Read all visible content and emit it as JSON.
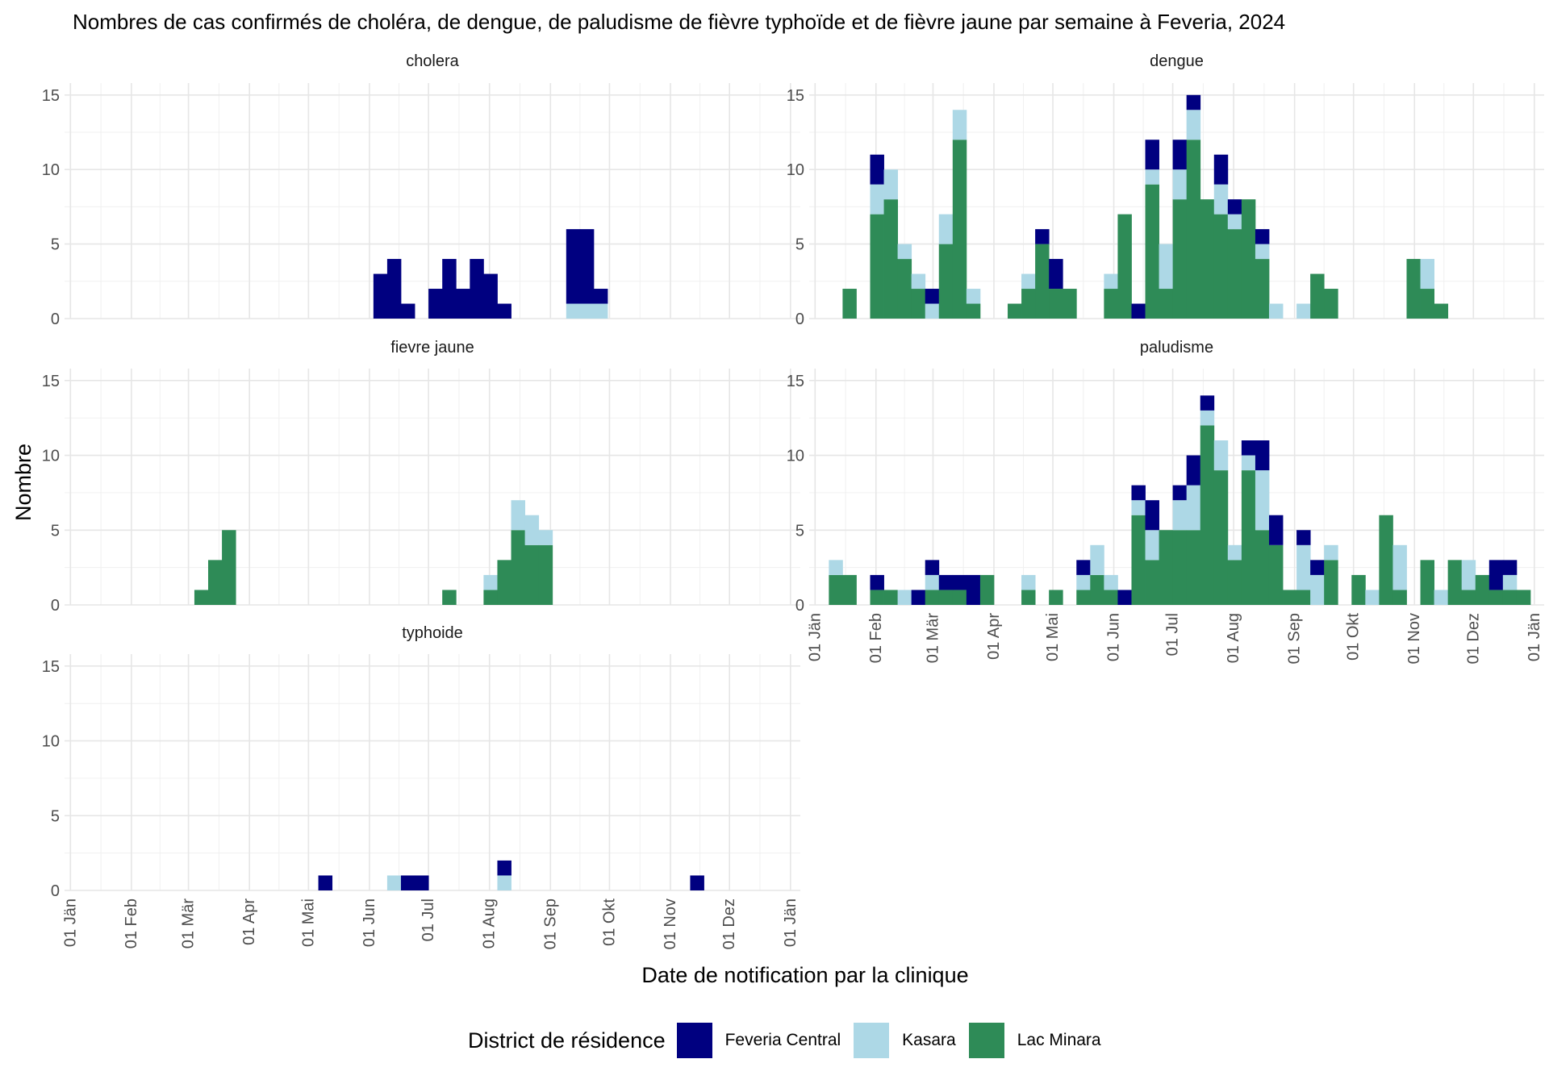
{
  "chart_data": {
    "type": "bar",
    "stacked": true,
    "title": "Nombres de cas confirmés de choléra, de dengue, de paludisme de fièvre typhoïde et de fièvre jaune par semaine à Feveria, 2024",
    "xlabel": "Date de notification par la clinique",
    "ylabel": "Nombre",
    "ylim": [
      0,
      15
    ],
    "yticks": [
      0,
      5,
      10,
      15
    ],
    "xlim": [
      "2023-12-29",
      "2025-01-06"
    ],
    "xtick_dates": [
      "2024-01-01",
      "2024-02-01",
      "2024-03-01",
      "2024-04-01",
      "2024-05-01",
      "2024-06-01",
      "2024-07-01",
      "2024-08-01",
      "2024-09-01",
      "2024-10-01",
      "2024-11-01",
      "2024-12-01",
      "2025-01-01"
    ],
    "xtick_labels": [
      "01 Jän",
      "01 Feb",
      "01 Mär",
      "01 Apr",
      "01 Mai",
      "01 Jun",
      "01 Jul",
      "01 Aug",
      "01 Sep",
      "01 Okt",
      "01 Nov",
      "01 Dez",
      "01 Jän"
    ],
    "grid": true,
    "legend": {
      "title": "District de résidence",
      "position": "bottom",
      "entries": [
        {
          "name": "Feveria Central",
          "color": "#000080"
        },
        {
          "name": "Kasara",
          "color": "#ADD8E6"
        },
        {
          "name": "Lac Minara",
          "color": "#2E8B57"
        }
      ]
    },
    "bin_width_days": 7,
    "series_order": [
      "Lac Minara",
      "Kasara",
      "Feveria Central"
    ],
    "panels": [
      {
        "name": "cholera",
        "weeks": [
          {
            "week": "2024-06-03",
            "Feveria Central": 3
          },
          {
            "week": "2024-06-10",
            "Feveria Central": 4
          },
          {
            "week": "2024-06-17",
            "Feveria Central": 1
          },
          {
            "week": "2024-07-01",
            "Feveria Central": 2
          },
          {
            "week": "2024-07-08",
            "Feveria Central": 4
          },
          {
            "week": "2024-07-15",
            "Feveria Central": 2
          },
          {
            "week": "2024-07-22",
            "Feveria Central": 4
          },
          {
            "week": "2024-07-29",
            "Feveria Central": 3
          },
          {
            "week": "2024-08-05",
            "Feveria Central": 1
          },
          {
            "week": "2024-09-09",
            "Kasara": 1,
            "Feveria Central": 5
          },
          {
            "week": "2024-09-16",
            "Kasara": 1,
            "Feveria Central": 5
          },
          {
            "week": "2024-09-23",
            "Kasara": 1,
            "Feveria Central": 1
          }
        ]
      },
      {
        "name": "dengue",
        "weeks": [
          {
            "week": "2024-01-15",
            "Lac Minara": 2
          },
          {
            "week": "2024-01-29",
            "Lac Minara": 7,
            "Kasara": 2,
            "Feveria Central": 2
          },
          {
            "week": "2024-02-05",
            "Lac Minara": 8,
            "Kasara": 2
          },
          {
            "week": "2024-02-12",
            "Lac Minara": 4,
            "Kasara": 1
          },
          {
            "week": "2024-02-19",
            "Lac Minara": 2,
            "Kasara": 1
          },
          {
            "week": "2024-02-26",
            "Kasara": 1,
            "Feveria Central": 1
          },
          {
            "week": "2024-03-04",
            "Lac Minara": 5,
            "Kasara": 2
          },
          {
            "week": "2024-03-11",
            "Lac Minara": 12,
            "Kasara": 2
          },
          {
            "week": "2024-03-18",
            "Lac Minara": 1,
            "Kasara": 1
          },
          {
            "week": "2024-04-08",
            "Lac Minara": 1
          },
          {
            "week": "2024-04-15",
            "Lac Minara": 2,
            "Kasara": 1
          },
          {
            "week": "2024-04-22",
            "Lac Minara": 5,
            "Feveria Central": 1
          },
          {
            "week": "2024-04-29",
            "Lac Minara": 2,
            "Feveria Central": 2
          },
          {
            "week": "2024-05-06",
            "Lac Minara": 2
          },
          {
            "week": "2024-05-27",
            "Lac Minara": 2,
            "Kasara": 1
          },
          {
            "week": "2024-06-03",
            "Lac Minara": 7
          },
          {
            "week": "2024-06-10",
            "Feveria Central": 1
          },
          {
            "week": "2024-06-17",
            "Lac Minara": 9,
            "Kasara": 1,
            "Feveria Central": 2
          },
          {
            "week": "2024-06-24",
            "Lac Minara": 2,
            "Kasara": 3
          },
          {
            "week": "2024-07-01",
            "Lac Minara": 8,
            "Kasara": 2,
            "Feveria Central": 2
          },
          {
            "week": "2024-07-08",
            "Lac Minara": 12,
            "Kasara": 2,
            "Feveria Central": 1
          },
          {
            "week": "2024-07-15",
            "Lac Minara": 8
          },
          {
            "week": "2024-07-22",
            "Lac Minara": 7,
            "Kasara": 2,
            "Feveria Central": 2
          },
          {
            "week": "2024-07-29",
            "Lac Minara": 6,
            "Kasara": 1,
            "Feveria Central": 1
          },
          {
            "week": "2024-08-05",
            "Lac Minara": 8
          },
          {
            "week": "2024-08-12",
            "Lac Minara": 4,
            "Kasara": 1,
            "Feveria Central": 1
          },
          {
            "week": "2024-08-19",
            "Kasara": 1
          },
          {
            "week": "2024-09-02",
            "Kasara": 1
          },
          {
            "week": "2024-09-09",
            "Lac Minara": 3
          },
          {
            "week": "2024-09-16",
            "Lac Minara": 2
          },
          {
            "week": "2024-10-28",
            "Lac Minara": 4
          },
          {
            "week": "2024-11-04",
            "Lac Minara": 2,
            "Kasara": 2
          },
          {
            "week": "2024-11-11",
            "Lac Minara": 1
          }
        ]
      },
      {
        "name": "fievre jaune",
        "weeks": [
          {
            "week": "2024-03-04",
            "Lac Minara": 1
          },
          {
            "week": "2024-03-11",
            "Lac Minara": 3
          },
          {
            "week": "2024-03-18",
            "Lac Minara": 5
          },
          {
            "week": "2024-07-08",
            "Lac Minara": 1
          },
          {
            "week": "2024-07-29",
            "Lac Minara": 1,
            "Kasara": 1
          },
          {
            "week": "2024-08-05",
            "Lac Minara": 3
          },
          {
            "week": "2024-08-12",
            "Lac Minara": 5,
            "Kasara": 2
          },
          {
            "week": "2024-08-19",
            "Lac Minara": 4,
            "Kasara": 2
          },
          {
            "week": "2024-08-26",
            "Lac Minara": 4,
            "Kasara": 1
          }
        ]
      },
      {
        "name": "paludisme",
        "weeks": [
          {
            "week": "2024-01-08",
            "Lac Minara": 2,
            "Kasara": 1
          },
          {
            "week": "2024-01-15",
            "Lac Minara": 2
          },
          {
            "week": "2024-01-29",
            "Lac Minara": 1,
            "Feveria Central": 1
          },
          {
            "week": "2024-02-05",
            "Lac Minara": 1
          },
          {
            "week": "2024-02-12",
            "Kasara": 1
          },
          {
            "week": "2024-02-19",
            "Feveria Central": 1
          },
          {
            "week": "2024-02-26",
            "Lac Minara": 1,
            "Kasara": 1,
            "Feveria Central": 1
          },
          {
            "week": "2024-03-04",
            "Lac Minara": 1,
            "Feveria Central": 1
          },
          {
            "week": "2024-03-11",
            "Lac Minara": 1,
            "Feveria Central": 1
          },
          {
            "week": "2024-03-18",
            "Feveria Central": 2
          },
          {
            "week": "2024-03-25",
            "Lac Minara": 2
          },
          {
            "week": "2024-04-15",
            "Lac Minara": 1,
            "Kasara": 1
          },
          {
            "week": "2024-04-29",
            "Lac Minara": 1
          },
          {
            "week": "2024-05-13",
            "Lac Minara": 1,
            "Kasara": 1,
            "Feveria Central": 1
          },
          {
            "week": "2024-05-20",
            "Lac Minara": 2,
            "Kasara": 2
          },
          {
            "week": "2024-05-27",
            "Lac Minara": 1,
            "Kasara": 1
          },
          {
            "week": "2024-06-03",
            "Feveria Central": 1
          },
          {
            "week": "2024-06-10",
            "Lac Minara": 6,
            "Kasara": 1,
            "Feveria Central": 1
          },
          {
            "week": "2024-06-17",
            "Lac Minara": 3,
            "Kasara": 2,
            "Feveria Central": 2
          },
          {
            "week": "2024-06-24",
            "Lac Minara": 5
          },
          {
            "week": "2024-07-01",
            "Lac Minara": 5,
            "Kasara": 2,
            "Feveria Central": 1
          },
          {
            "week": "2024-07-08",
            "Lac Minara": 5,
            "Kasara": 3,
            "Feveria Central": 2
          },
          {
            "week": "2024-07-15",
            "Lac Minara": 12,
            "Kasara": 1,
            "Feveria Central": 1
          },
          {
            "week": "2024-07-22",
            "Lac Minara": 9,
            "Kasara": 2
          },
          {
            "week": "2024-07-29",
            "Lac Minara": 3,
            "Kasara": 1
          },
          {
            "week": "2024-08-05",
            "Lac Minara": 9,
            "Kasara": 1,
            "Feveria Central": 1
          },
          {
            "week": "2024-08-12",
            "Lac Minara": 5,
            "Kasara": 4,
            "Feveria Central": 2
          },
          {
            "week": "2024-08-19",
            "Lac Minara": 4,
            "Feveria Central": 2
          },
          {
            "week": "2024-08-26",
            "Lac Minara": 1
          },
          {
            "week": "2024-09-02",
            "Lac Minara": 1,
            "Kasara": 3,
            "Feveria Central": 1
          },
          {
            "week": "2024-09-09",
            "Kasara": 2,
            "Feveria Central": 1
          },
          {
            "week": "2024-09-16",
            "Lac Minara": 3,
            "Kasara": 1
          },
          {
            "week": "2024-09-30",
            "Lac Minara": 2
          },
          {
            "week": "2024-10-07",
            "Kasara": 1
          },
          {
            "week": "2024-10-14",
            "Lac Minara": 6
          },
          {
            "week": "2024-10-21",
            "Lac Minara": 1,
            "Kasara": 3
          },
          {
            "week": "2024-11-04",
            "Lac Minara": 3
          },
          {
            "week": "2024-11-11",
            "Kasara": 1
          },
          {
            "week": "2024-11-18",
            "Lac Minara": 3
          },
          {
            "week": "2024-11-25",
            "Lac Minara": 1,
            "Kasara": 2
          },
          {
            "week": "2024-12-02",
            "Lac Minara": 2
          },
          {
            "week": "2024-12-09",
            "Lac Minara": 1,
            "Feveria Central": 2
          },
          {
            "week": "2024-12-16",
            "Lac Minara": 1,
            "Kasara": 1,
            "Feveria Central": 1
          },
          {
            "week": "2024-12-23",
            "Lac Minara": 1
          }
        ]
      },
      {
        "name": "typhoide",
        "weeks": [
          {
            "week": "2024-05-06",
            "Feveria Central": 1
          },
          {
            "week": "2024-06-10",
            "Kasara": 1
          },
          {
            "week": "2024-06-17",
            "Feveria Central": 1
          },
          {
            "week": "2024-06-24",
            "Feveria Central": 1
          },
          {
            "week": "2024-08-05",
            "Kasara": 1,
            "Feveria Central": 1
          },
          {
            "week": "2024-11-11",
            "Feveria Central": 1
          }
        ]
      }
    ]
  }
}
